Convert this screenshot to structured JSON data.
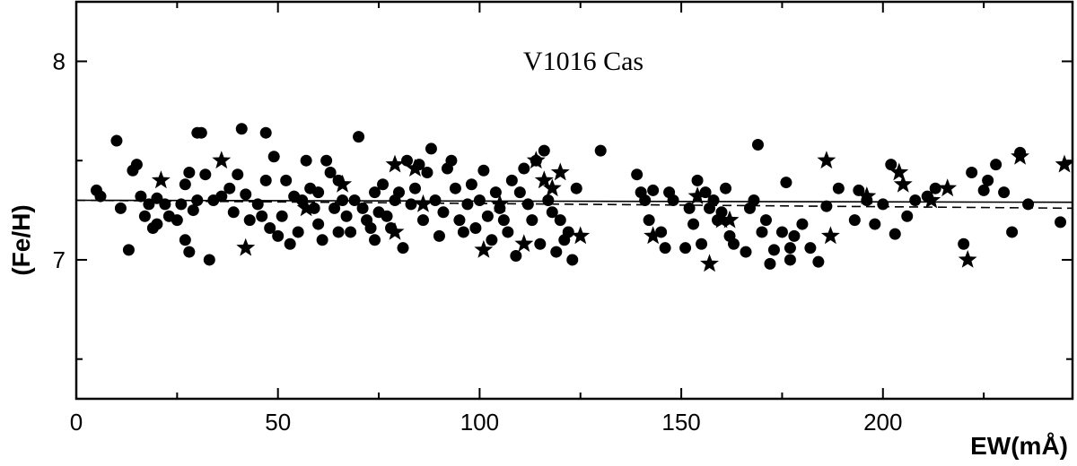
{
  "chart_data": {
    "type": "scatter",
    "title": "V1016 Cas",
    "xlabel": "EW(mÅ)",
    "ylabel": "(Fe/H)",
    "xlim": [
      0,
      247
    ],
    "ylim": [
      6.3,
      8.3
    ],
    "xticks": [
      0,
      50,
      100,
      150,
      200
    ],
    "yticks": [
      7,
      8
    ],
    "grid": false,
    "series": [
      {
        "marker": "circle",
        "color": "#000000",
        "points": [
          [
            5,
            7.35
          ],
          [
            6,
            7.32
          ],
          [
            10,
            7.6
          ],
          [
            11,
            7.26
          ],
          [
            13,
            7.05
          ],
          [
            14,
            7.45
          ],
          [
            15,
            7.48
          ],
          [
            16,
            7.32
          ],
          [
            17,
            7.22
          ],
          [
            18,
            7.28
          ],
          [
            19,
            7.16
          ],
          [
            20,
            7.31
          ],
          [
            20,
            7.18
          ],
          [
            22,
            7.28
          ],
          [
            23,
            7.22
          ],
          [
            25,
            7.2
          ],
          [
            26,
            7.28
          ],
          [
            27,
            7.38
          ],
          [
            27,
            7.1
          ],
          [
            28,
            7.44
          ],
          [
            28,
            7.04
          ],
          [
            29,
            7.25
          ],
          [
            30,
            7.3
          ],
          [
            30,
            7.64
          ],
          [
            31,
            7.64
          ],
          [
            32,
            7.43
          ],
          [
            33,
            7.0
          ],
          [
            34,
            7.3
          ],
          [
            36,
            7.32
          ],
          [
            38,
            7.36
          ],
          [
            39,
            7.24
          ],
          [
            40,
            7.43
          ],
          [
            41,
            7.66
          ],
          [
            42,
            7.33
          ],
          [
            43,
            7.2
          ],
          [
            45,
            7.28
          ],
          [
            46,
            7.22
          ],
          [
            47,
            7.4
          ],
          [
            47,
            7.64
          ],
          [
            48,
            7.16
          ],
          [
            49,
            7.52
          ],
          [
            50,
            7.12
          ],
          [
            51,
            7.22
          ],
          [
            52,
            7.4
          ],
          [
            53,
            7.08
          ],
          [
            54,
            7.32
          ],
          [
            55,
            7.14
          ],
          [
            56,
            7.3
          ],
          [
            57,
            7.5
          ],
          [
            58,
            7.36
          ],
          [
            59,
            7.26
          ],
          [
            60,
            7.18
          ],
          [
            60,
            7.34
          ],
          [
            61,
            7.1
          ],
          [
            62,
            7.5
          ],
          [
            63,
            7.44
          ],
          [
            64,
            7.26
          ],
          [
            65,
            7.4
          ],
          [
            65,
            7.14
          ],
          [
            66,
            7.3
          ],
          [
            67,
            7.22
          ],
          [
            68,
            7.14
          ],
          [
            69,
            7.3
          ],
          [
            70,
            7.62
          ],
          [
            71,
            7.26
          ],
          [
            72,
            7.2
          ],
          [
            73,
            7.16
          ],
          [
            74,
            7.34
          ],
          [
            74,
            7.1
          ],
          [
            75,
            7.24
          ],
          [
            76,
            7.38
          ],
          [
            77,
            7.22
          ],
          [
            78,
            7.16
          ],
          [
            79,
            7.3
          ],
          [
            80,
            7.34
          ],
          [
            81,
            7.06
          ],
          [
            82,
            7.5
          ],
          [
            83,
            7.28
          ],
          [
            84,
            7.36
          ],
          [
            85,
            7.48
          ],
          [
            86,
            7.2
          ],
          [
            87,
            7.44
          ],
          [
            88,
            7.56
          ],
          [
            89,
            7.3
          ],
          [
            90,
            7.12
          ],
          [
            91,
            7.24
          ],
          [
            92,
            7.46
          ],
          [
            93,
            7.5
          ],
          [
            94,
            7.36
          ],
          [
            95,
            7.2
          ],
          [
            96,
            7.14
          ],
          [
            97,
            7.28
          ],
          [
            98,
            7.38
          ],
          [
            99,
            7.16
          ],
          [
            100,
            7.3
          ],
          [
            101,
            7.45
          ],
          [
            102,
            7.22
          ],
          [
            103,
            7.1
          ],
          [
            104,
            7.34
          ],
          [
            105,
            7.26
          ],
          [
            106,
            7.2
          ],
          [
            107,
            7.14
          ],
          [
            108,
            7.4
          ],
          [
            109,
            7.02
          ],
          [
            110,
            7.34
          ],
          [
            111,
            7.46
          ],
          [
            112,
            7.28
          ],
          [
            113,
            7.2
          ],
          [
            114,
            7.5
          ],
          [
            115,
            7.08
          ],
          [
            116,
            7.55
          ],
          [
            117,
            7.3
          ],
          [
            118,
            7.24
          ],
          [
            119,
            7.04
          ],
          [
            120,
            7.2
          ],
          [
            121,
            7.1
          ],
          [
            122,
            7.14
          ],
          [
            123,
            7.0
          ],
          [
            124,
            7.36
          ],
          [
            130,
            7.55
          ],
          [
            139,
            7.43
          ],
          [
            140,
            7.34
          ],
          [
            141,
            7.3
          ],
          [
            142,
            7.2
          ],
          [
            143,
            7.35
          ],
          [
            145,
            7.14
          ],
          [
            146,
            7.06
          ],
          [
            147,
            7.34
          ],
          [
            148,
            7.3
          ],
          [
            151,
            7.06
          ],
          [
            152,
            7.26
          ],
          [
            153,
            7.18
          ],
          [
            154,
            7.4
          ],
          [
            155,
            7.08
          ],
          [
            156,
            7.34
          ],
          [
            157,
            7.26
          ],
          [
            158,
            7.3
          ],
          [
            159,
            7.2
          ],
          [
            160,
            7.24
          ],
          [
            161,
            7.36
          ],
          [
            162,
            7.12
          ],
          [
            163,
            7.08
          ],
          [
            166,
            7.04
          ],
          [
            167,
            7.26
          ],
          [
            168,
            7.3
          ],
          [
            169,
            7.58
          ],
          [
            170,
            7.14
          ],
          [
            171,
            7.2
          ],
          [
            172,
            6.98
          ],
          [
            173,
            7.05
          ],
          [
            175,
            7.14
          ],
          [
            176,
            7.39
          ],
          [
            177,
            7.0
          ],
          [
            177,
            7.06
          ],
          [
            178,
            7.12
          ],
          [
            180,
            7.18
          ],
          [
            182,
            7.06
          ],
          [
            184,
            6.99
          ],
          [
            186,
            7.27
          ],
          [
            189,
            7.36
          ],
          [
            193,
            7.2
          ],
          [
            194,
            7.35
          ],
          [
            196,
            7.3
          ],
          [
            198,
            7.18
          ],
          [
            200,
            7.28
          ],
          [
            202,
            7.48
          ],
          [
            203,
            7.13
          ],
          [
            206,
            7.22
          ],
          [
            208,
            7.3
          ],
          [
            211,
            7.32
          ],
          [
            213,
            7.36
          ],
          [
            220,
            7.08
          ],
          [
            222,
            7.44
          ],
          [
            225,
            7.35
          ],
          [
            226,
            7.4
          ],
          [
            228,
            7.48
          ],
          [
            230,
            7.34
          ],
          [
            232,
            7.14
          ],
          [
            234,
            7.54
          ],
          [
            236,
            7.28
          ],
          [
            244,
            7.19
          ]
        ]
      },
      {
        "marker": "star",
        "color": "#000000",
        "points": [
          [
            21,
            7.4
          ],
          [
            36,
            7.5
          ],
          [
            42,
            7.06
          ],
          [
            57,
            7.26
          ],
          [
            66,
            7.38
          ],
          [
            79,
            7.48
          ],
          [
            79,
            7.14
          ],
          [
            84,
            7.46
          ],
          [
            86,
            7.28
          ],
          [
            101,
            7.05
          ],
          [
            105,
            7.28
          ],
          [
            111,
            7.08
          ],
          [
            114,
            7.5
          ],
          [
            116,
            7.4
          ],
          [
            118,
            7.36
          ],
          [
            120,
            7.44
          ],
          [
            125,
            7.12
          ],
          [
            143,
            7.12
          ],
          [
            154,
            7.32
          ],
          [
            157,
            6.98
          ],
          [
            160,
            7.2
          ],
          [
            162,
            7.2
          ],
          [
            186,
            7.5
          ],
          [
            187,
            7.12
          ],
          [
            196,
            7.32
          ],
          [
            204,
            7.44
          ],
          [
            205,
            7.38
          ],
          [
            212,
            7.3
          ],
          [
            216,
            7.36
          ],
          [
            221,
            7.0
          ],
          [
            234,
            7.52
          ],
          [
            245,
            7.48
          ]
        ]
      }
    ],
    "fit_lines": [
      {
        "style": "solid",
        "x": [
          0,
          247
        ],
        "y": [
          7.3,
          7.29
        ]
      },
      {
        "style": "dashed",
        "x": [
          0,
          247
        ],
        "y": [
          7.3,
          7.26
        ]
      }
    ]
  }
}
